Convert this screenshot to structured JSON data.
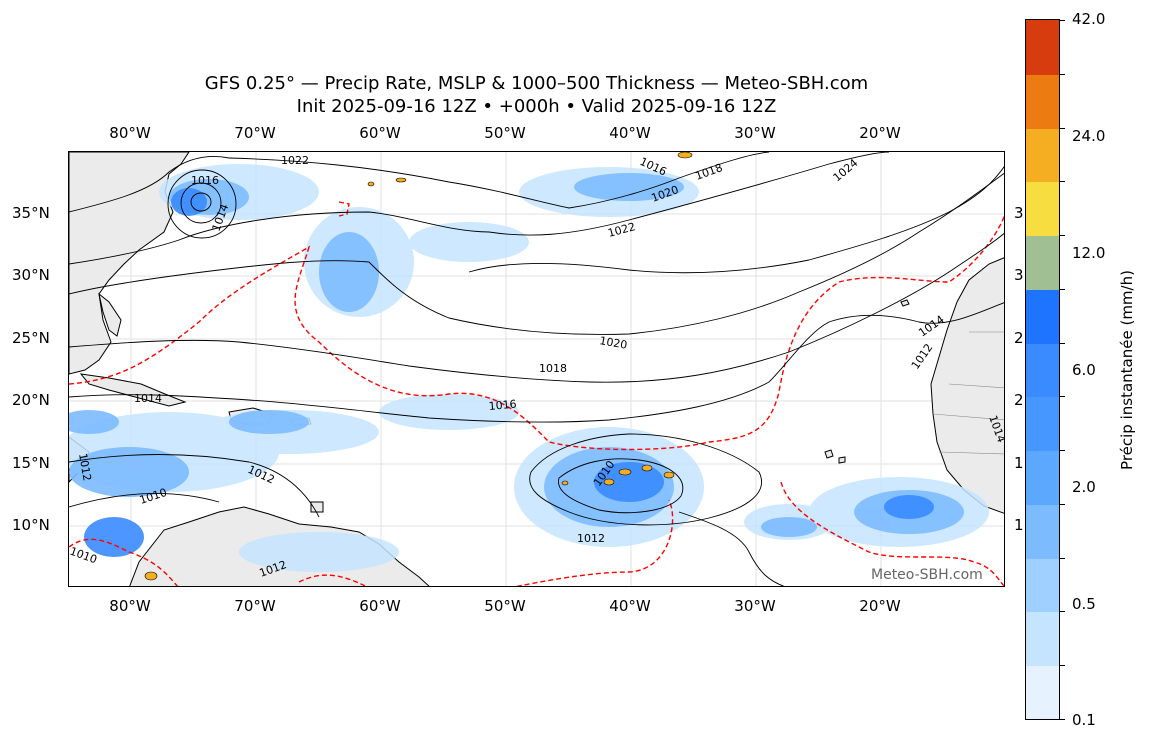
{
  "title": {
    "line1": "GFS 0.25° — Precip Rate, MSLP & 1000–500 Thickness — Meteo-SBH.com",
    "line2": "Init 2025-09-16 12Z • +000h • Valid 2025-09-16 12Z"
  },
  "map": {
    "lon_labels": [
      "80°W",
      "70°W",
      "60°W",
      "50°W",
      "40°W",
      "30°W",
      "20°W"
    ],
    "lat_labels": [
      "35°N",
      "30°N",
      "25°N",
      "20°N",
      "15°N",
      "10°N"
    ],
    "isobar_labels": [
      "1022",
      "1016",
      "1014",
      "1016",
      "1018",
      "1020",
      "1022",
      "1024",
      "1020",
      "1018",
      "1016",
      "1014",
      "1012",
      "1010",
      "1012",
      "1010",
      "1012",
      "1014",
      "1012",
      "1010",
      "1012",
      "1014"
    ],
    "edge_digits": [
      "3",
      "3",
      "2",
      "2",
      "1",
      "1"
    ],
    "watermark": "Meteo-SBH.com",
    "land_color": "#ebebeb",
    "thickness_line_color": "#ff0000"
  },
  "colorbar": {
    "label": "Précip instantanée (mm/h)",
    "tick_labels": [
      "42.0",
      "24.0",
      "12.0",
      "6.0",
      "2.0",
      "0.5",
      "0.1"
    ],
    "colors": [
      "#e6f3ff",
      "#c5e4ff",
      "#a0d0ff",
      "#7dbbff",
      "#5da8ff",
      "#4697ff",
      "#3a8bff",
      "#1e73ff",
      "#a0c093",
      "#f8dd41",
      "#f5ad22",
      "#ec7c12",
      "#d63c0e"
    ]
  }
}
